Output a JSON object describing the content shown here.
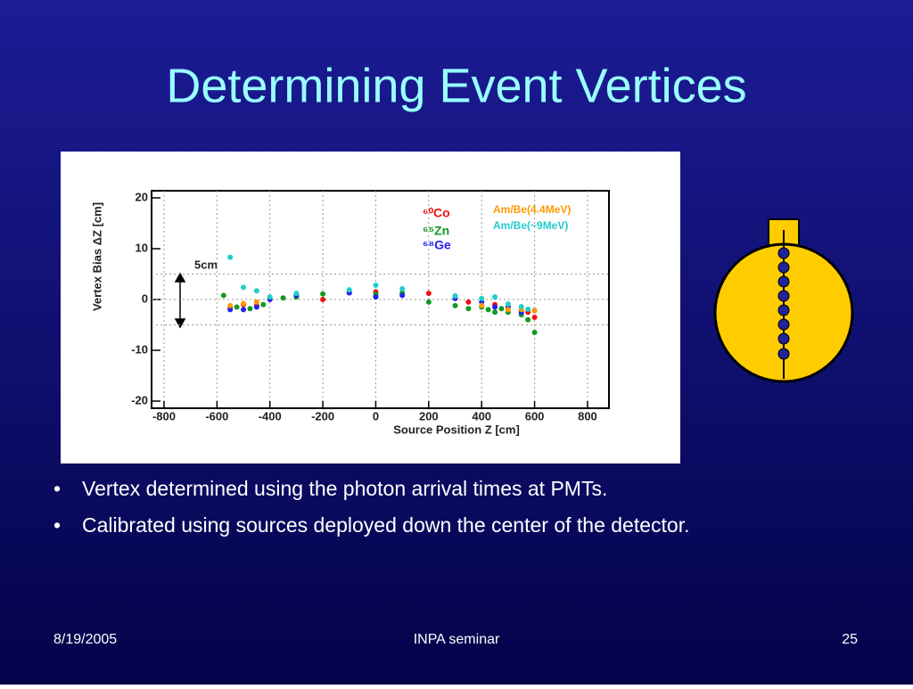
{
  "slide_title": "Determining Event Vertices",
  "bullets": [
    "Vertex determined using the photon arrival times at PMTs.",
    "Calibrated using sources deployed down the center of the detector."
  ],
  "footer": {
    "date": "8/19/2005",
    "event": "INPA seminar",
    "page": "25"
  },
  "chart_data": {
    "type": "scatter",
    "x_label": "Source Position Z [cm]",
    "y_label": "Vertex Bias ΔZ [cm]",
    "annotation": "5cm",
    "xlim": [
      -847,
      881
    ],
    "ylim": [
      -21.4,
      21.4
    ],
    "xticks": [
      -800,
      -600,
      -400,
      -200,
      0,
      200,
      400,
      600,
      800
    ],
    "yticks": [
      20,
      10,
      0,
      -10,
      -20
    ],
    "xgrid": true,
    "reference_lines": [
      5,
      0,
      -5
    ],
    "series": [
      {
        "name": "⁶⁰Co",
        "color": "#ee1111",
        "x": [
          -550,
          -500,
          -450,
          -200,
          0,
          200,
          350,
          450,
          500,
          550,
          575,
          600
        ],
        "values": [
          -1.5,
          -1,
          -1.2,
          0,
          1.5,
          1.2,
          -0.5,
          -1,
          -1.5,
          -2,
          -2.5,
          -3.5
        ]
      },
      {
        "name": "⁶⁵Zn",
        "color": "#119922",
        "x": [
          -575,
          -525,
          -475,
          -425,
          -350,
          -300,
          -200,
          -100,
          0,
          100,
          200,
          300,
          350,
          400,
          425,
          450,
          475,
          500,
          550,
          575,
          600
        ],
        "values": [
          0.8,
          -1.5,
          -1.8,
          -1,
          0.3,
          0.5,
          1.1,
          1.5,
          1,
          1.3,
          -0.5,
          -1.2,
          -1.8,
          -1.5,
          -2,
          -2.5,
          -1.8,
          -2.5,
          -3,
          -4,
          -6.5
        ]
      },
      {
        "name": "⁶⁸Ge",
        "color": "#2222ee",
        "x": [
          -550,
          -500,
          -450,
          -400,
          -300,
          -100,
          0,
          100,
          300,
          400,
          450,
          500,
          550,
          600
        ],
        "values": [
          -2,
          -2,
          -1.5,
          0,
          0.8,
          1.3,
          0.5,
          0.8,
          0.2,
          -0.5,
          -1.5,
          -1.5,
          -2.5,
          -2.2
        ]
      },
      {
        "name": "Am/Be(4.4MeV)",
        "color": "#ff9900",
        "x": [
          -550,
          -500,
          -450,
          400,
          500,
          550,
          600
        ],
        "values": [
          -1.2,
          -0.8,
          -0.5,
          -1.2,
          -2,
          -2,
          -2.2
        ]
      },
      {
        "name": "Am/Be(~9MeV)",
        "color": "#22cccc",
        "x": [
          -550,
          -500,
          -450,
          -400,
          -300,
          -100,
          0,
          100,
          300,
          400,
          450,
          500,
          550,
          575
        ],
        "values": [
          8.3,
          2.4,
          1.7,
          0.5,
          1.2,
          1.9,
          2.8,
          2.1,
          0.7,
          0.2,
          0.5,
          -0.9,
          -1.4,
          -1.9
        ]
      }
    ]
  }
}
